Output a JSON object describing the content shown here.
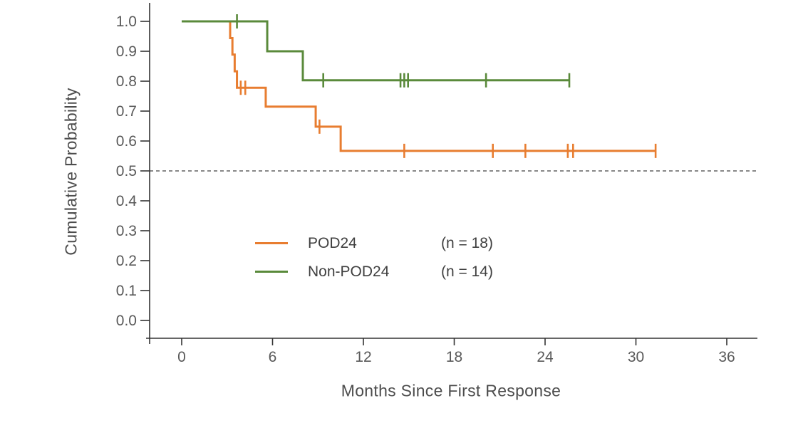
{
  "legend": {
    "entries": [
      {
        "label": "POD24",
        "count": "(n = 18)",
        "color": "#E87D30"
      },
      {
        "label": "Non-POD24",
        "count": "(n = 14)",
        "color": "#5A8A3B"
      }
    ]
  },
  "chart_data": {
    "type": "line",
    "subtype": "kaplan-meier-step",
    "title": "",
    "xlabel": "Months Since First Response",
    "ylabel": "Cumulative Probability",
    "xlim": [
      -2,
      38
    ],
    "ylim": [
      0,
      1.05
    ],
    "xticks": [
      0,
      6,
      12,
      18,
      24,
      30,
      36
    ],
    "yticks": [
      0.0,
      0.1,
      0.2,
      0.3,
      0.4,
      0.5,
      0.6,
      0.7,
      0.8,
      0.9,
      1.0
    ],
    "grid": false,
    "legend_position": "inside-lower-left",
    "reference_line": {
      "y": 0.5,
      "style": "dashed",
      "color": "#404040"
    },
    "axis_color": "#333333",
    "tick_label_color": "#595959",
    "series": [
      {
        "name": "POD24",
        "n": 18,
        "color": "#E87D30",
        "steps": [
          [
            0,
            1.0
          ],
          [
            3.2,
            0.944
          ],
          [
            3.35,
            0.889
          ],
          [
            3.5,
            0.833
          ],
          [
            3.65,
            0.778
          ],
          [
            5.55,
            0.715
          ],
          [
            8.85,
            0.648
          ],
          [
            10.5,
            0.567
          ]
        ],
        "end_month": 31.3,
        "censors": [
          [
            3.9,
            0.778
          ],
          [
            4.2,
            0.778
          ],
          [
            9.1,
            0.648
          ],
          [
            14.7,
            0.567
          ],
          [
            20.55,
            0.567
          ],
          [
            22.7,
            0.567
          ],
          [
            25.5,
            0.567
          ],
          [
            25.85,
            0.567
          ],
          [
            31.3,
            0.567
          ]
        ]
      },
      {
        "name": "Non-POD24",
        "n": 14,
        "color": "#5A8A3B",
        "steps": [
          [
            0,
            1.0
          ],
          [
            5.65,
            0.9
          ],
          [
            8.0,
            0.803
          ]
        ],
        "end_month": 25.6,
        "censors": [
          [
            3.65,
            1.0
          ],
          [
            9.35,
            0.803
          ],
          [
            14.45,
            0.803
          ],
          [
            14.7,
            0.803
          ],
          [
            14.95,
            0.803
          ],
          [
            20.1,
            0.803
          ],
          [
            25.6,
            0.803
          ]
        ]
      }
    ]
  }
}
